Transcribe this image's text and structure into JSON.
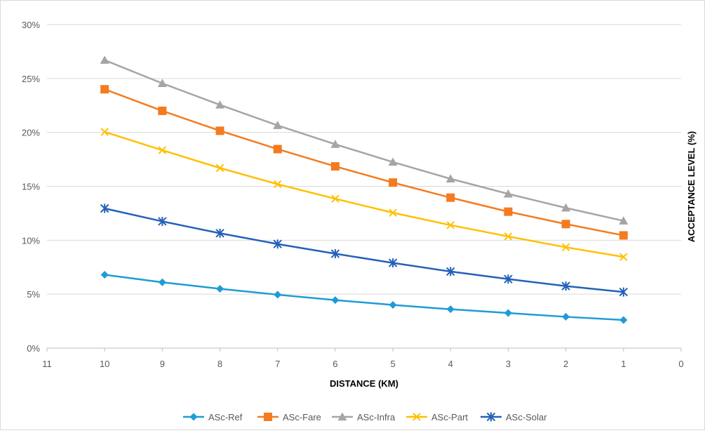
{
  "chart_data": {
    "type": "line",
    "title": "",
    "xlabel": "DISTANCE (KM)",
    "ylabel": "ACCEPTANCE LEVEL (%)",
    "x": [
      10,
      9,
      8,
      7,
      6,
      5,
      4,
      3,
      2,
      1
    ],
    "xlim": [
      11,
      0
    ],
    "x_reversed": true,
    "x_ticks": [
      11,
      10,
      9,
      8,
      7,
      6,
      5,
      4,
      3,
      2,
      1,
      0
    ],
    "x_tick_labels": [
      "11",
      "10",
      "9",
      "8",
      "7",
      "6",
      "5",
      "4",
      "3",
      "2",
      "1",
      "0"
    ],
    "ylim": [
      0,
      30
    ],
    "y_ticks": [
      0,
      5,
      10,
      15,
      20,
      25,
      30
    ],
    "y_tick_labels": [
      "0%",
      "5%",
      "10%",
      "15%",
      "20%",
      "25%",
      "30%"
    ],
    "y_axis_position": "right-title",
    "grid": true,
    "legend_position": "bottom",
    "series": [
      {
        "name": "ASc-Ref",
        "color": "#1f9bd7",
        "marker": "diamond",
        "values": [
          6.8,
          6.1,
          5.5,
          4.95,
          4.45,
          4.0,
          3.6,
          3.25,
          2.9,
          2.6
        ]
      },
      {
        "name": "ASc-Fare",
        "color": "#f47b20",
        "marker": "square",
        "values": [
          24.0,
          22.0,
          20.15,
          18.45,
          16.85,
          15.35,
          13.95,
          12.65,
          11.5,
          10.45
        ]
      },
      {
        "name": "ASc-Infra",
        "color": "#a5a5a5",
        "marker": "triangle",
        "values": [
          26.7,
          24.55,
          22.55,
          20.65,
          18.9,
          17.25,
          15.7,
          14.3,
          13.0,
          11.8
        ]
      },
      {
        "name": "ASc-Part",
        "color": "#ffc000",
        "marker": "x",
        "values": [
          20.05,
          18.35,
          16.7,
          15.2,
          13.85,
          12.55,
          11.4,
          10.35,
          9.35,
          8.45
        ]
      },
      {
        "name": "ASc-Solar",
        "color": "#2462b8",
        "marker": "asterisk",
        "values": [
          12.95,
          11.75,
          10.65,
          9.65,
          8.75,
          7.9,
          7.1,
          6.4,
          5.75,
          5.2
        ]
      }
    ]
  }
}
